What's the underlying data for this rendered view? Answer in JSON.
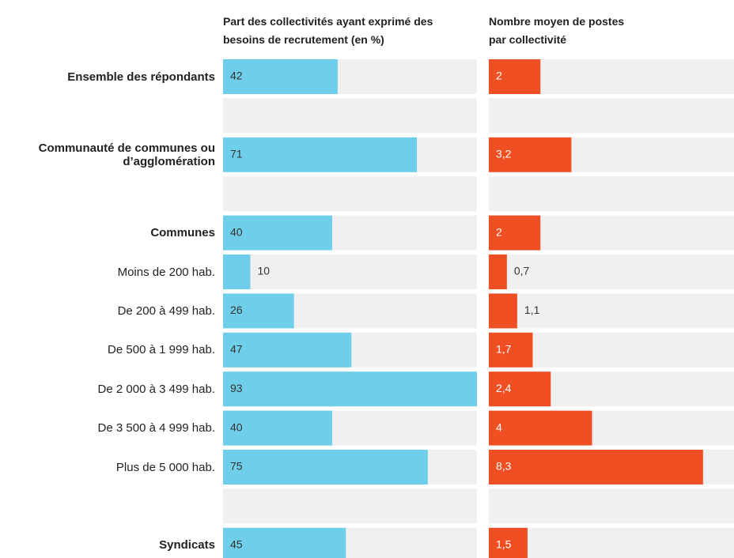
{
  "chart_data": {
    "type": "bar",
    "orientation": "horizontal",
    "categories": [
      "Ensemble des répondants",
      null,
      "Communauté de communes ou d’agglomération",
      null,
      "Communes",
      "Moins de 200 hab.",
      "De 200 à 499 hab.",
      "De 500 à 1 999 hab.",
      "De 2 000 à 3 499 hab.",
      "De 3 500 à 4 999 hab.",
      "Plus de 5 000 hab.",
      null,
      "Syndicats"
    ],
    "bold": [
      true,
      null,
      true,
      null,
      true,
      false,
      false,
      false,
      false,
      false,
      false,
      null,
      true
    ],
    "track_color": "#f0f0f0",
    "series": [
      {
        "name": "Part des collectivités ayant exprimé des besoins de recrutement  (en %)",
        "color": "#6fcfea",
        "xlim": [
          0,
          93
        ],
        "values": [
          42,
          null,
          71,
          null,
          40,
          10,
          26,
          47,
          93,
          40,
          75,
          null,
          45
        ]
      },
      {
        "name": "Nombre moyen de postes par collectivité",
        "color": "#f04e23",
        "xlim": [
          0,
          9.5
        ],
        "values": [
          2,
          null,
          3.2,
          null,
          2,
          0.7,
          1.1,
          1.7,
          2.4,
          4,
          8.3,
          null,
          1.5
        ],
        "value_labels": [
          "2",
          null,
          "3,2",
          null,
          "2",
          "0,7",
          "1,1",
          "1,7",
          "2,4",
          "4",
          "8,3",
          null,
          "1,5"
        ]
      }
    ]
  }
}
